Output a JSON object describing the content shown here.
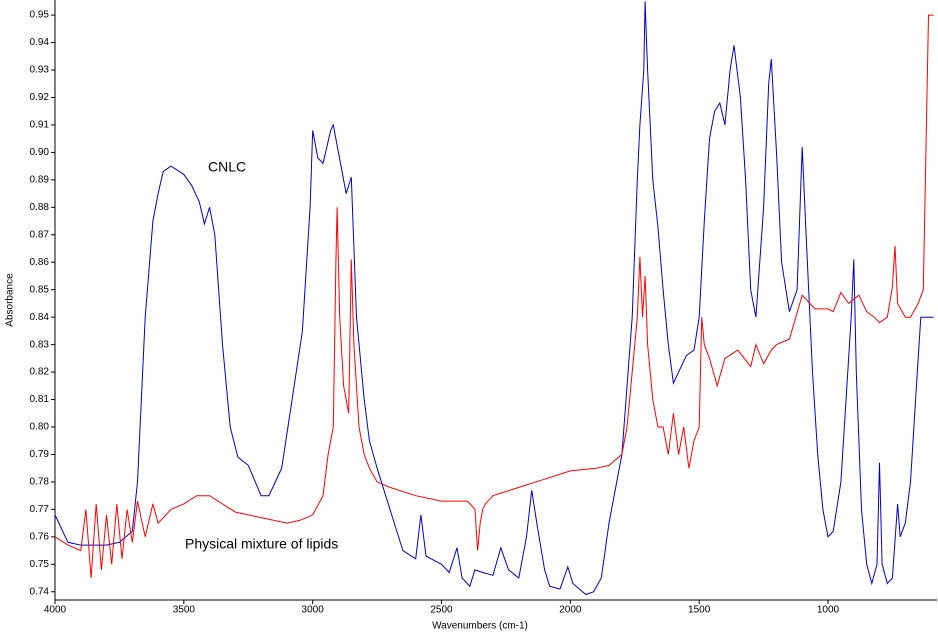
{
  "chart_data": {
    "type": "line",
    "xlabel": "Wavenumbers (cm-1)",
    "ylabel": "Absorbance",
    "xlim": [
      4000,
      577
    ],
    "ylim": [
      0.737,
      0.9555
    ],
    "xticks": [
      4000,
      3500,
      3000,
      2500,
      2000,
      1500,
      1000
    ],
    "yticks": [
      0.74,
      0.75,
      0.76,
      0.77,
      0.78,
      0.79,
      {
        "value": 0.8,
        "label": "0.80"
      },
      0.81,
      0.82,
      0.83,
      0.84,
      0.85,
      0.86,
      0.87,
      0.88,
      0.89,
      {
        "value": 0.9,
        "label": "0.90"
      },
      0.91,
      0.92,
      0.93,
      0.94,
      0.95
    ],
    "series": [
      {
        "name": "CNLC",
        "color": "#0000cc",
        "x": [
          4000,
          3950,
          3900,
          3800,
          3750,
          3700,
          3680,
          3650,
          3620,
          3600,
          3580,
          3550,
          3500,
          3470,
          3440,
          3420,
          3400,
          3380,
          3350,
          3320,
          3290,
          3250,
          3200,
          3170,
          3120,
          3080,
          3040,
          3010,
          3000,
          2980,
          2960,
          2930,
          2920,
          2900,
          2870,
          2850,
          2830,
          2800,
          2780,
          2750,
          2700,
          2650,
          2600,
          2580,
          2560,
          2500,
          2470,
          2440,
          2420,
          2390,
          2370,
          2340,
          2300,
          2270,
          2240,
          2200,
          2170,
          2150,
          2130,
          2100,
          2080,
          2040,
          2010,
          1990,
          1940,
          1910,
          1880,
          1850,
          1800,
          1760,
          1740,
          1730,
          1715,
          1710,
          1700,
          1680,
          1660,
          1640,
          1620,
          1600,
          1580,
          1550,
          1520,
          1500,
          1480,
          1460,
          1440,
          1420,
          1400,
          1380,
          1365,
          1340,
          1320,
          1300,
          1280,
          1250,
          1230,
          1220,
          1200,
          1180,
          1150,
          1120,
          1100,
          1085,
          1060,
          1040,
          1020,
          1000,
          980,
          950,
          910,
          900,
          890,
          870,
          850,
          830,
          810,
          800,
          790,
          770,
          750,
          730,
          720,
          700,
          680,
          660,
          640,
          590
        ],
        "values": [
          0.768,
          0.758,
          0.757,
          0.757,
          0.758,
          0.762,
          0.78,
          0.84,
          0.875,
          0.885,
          0.893,
          0.895,
          0.892,
          0.888,
          0.882,
          0.874,
          0.88,
          0.87,
          0.83,
          0.8,
          0.789,
          0.786,
          0.775,
          0.775,
          0.785,
          0.81,
          0.835,
          0.88,
          0.908,
          0.898,
          0.896,
          0.908,
          0.91,
          0.9,
          0.885,
          0.891,
          0.84,
          0.81,
          0.795,
          0.785,
          0.77,
          0.755,
          0.752,
          0.768,
          0.753,
          0.75,
          0.747,
          0.756,
          0.745,
          0.742,
          0.748,
          0.747,
          0.746,
          0.756,
          0.748,
          0.745,
          0.76,
          0.777,
          0.765,
          0.748,
          0.742,
          0.741,
          0.749,
          0.743,
          0.739,
          0.74,
          0.745,
          0.765,
          0.79,
          0.84,
          0.89,
          0.91,
          0.93,
          0.955,
          0.93,
          0.89,
          0.873,
          0.85,
          0.83,
          0.816,
          0.82,
          0.826,
          0.828,
          0.84,
          0.875,
          0.905,
          0.915,
          0.918,
          0.91,
          0.93,
          0.939,
          0.92,
          0.89,
          0.85,
          0.84,
          0.88,
          0.925,
          0.934,
          0.9,
          0.86,
          0.842,
          0.85,
          0.902,
          0.87,
          0.82,
          0.79,
          0.77,
          0.76,
          0.762,
          0.78,
          0.84,
          0.861,
          0.82,
          0.77,
          0.75,
          0.743,
          0.75,
          0.787,
          0.75,
          0.743,
          0.745,
          0.772,
          0.76,
          0.765,
          0.78,
          0.81,
          0.84,
          0.84
        ]
      },
      {
        "name": "Physical mixture of lipids",
        "color": "#ff0000",
        "x": [
          4000,
          3950,
          3900,
          3880,
          3860,
          3840,
          3820,
          3800,
          3780,
          3760,
          3740,
          3720,
          3700,
          3680,
          3650,
          3620,
          3600,
          3550,
          3500,
          3450,
          3400,
          3350,
          3300,
          3200,
          3100,
          3050,
          3000,
          2960,
          2940,
          2920,
          2910,
          2905,
          2895,
          2880,
          2860,
          2850,
          2840,
          2820,
          2800,
          2780,
          2750,
          2700,
          2600,
          2500,
          2400,
          2370,
          2360,
          2350,
          2340,
          2330,
          2300,
          2200,
          2100,
          2000,
          1900,
          1850,
          1800,
          1780,
          1760,
          1740,
          1730,
          1720,
          1710,
          1700,
          1680,
          1660,
          1640,
          1620,
          1600,
          1580,
          1560,
          1540,
          1520,
          1500,
          1490,
          1480,
          1460,
          1430,
          1400,
          1350,
          1300,
          1280,
          1250,
          1220,
          1200,
          1150,
          1100,
          1050,
          1000,
          980,
          950,
          920,
          880,
          850,
          820,
          800,
          770,
          750,
          740,
          730,
          700,
          680,
          650,
          630,
          620,
          610,
          590
        ],
        "values": [
          0.76,
          0.757,
          0.755,
          0.77,
          0.745,
          0.772,
          0.748,
          0.768,
          0.75,
          0.772,
          0.752,
          0.77,
          0.758,
          0.773,
          0.76,
          0.772,
          0.765,
          0.77,
          0.772,
          0.775,
          0.775,
          0.772,
          0.769,
          0.767,
          0.765,
          0.766,
          0.768,
          0.775,
          0.79,
          0.8,
          0.86,
          0.88,
          0.84,
          0.815,
          0.805,
          0.861,
          0.83,
          0.8,
          0.79,
          0.785,
          0.78,
          0.778,
          0.775,
          0.773,
          0.773,
          0.77,
          0.755,
          0.765,
          0.77,
          0.772,
          0.775,
          0.778,
          0.781,
          0.784,
          0.785,
          0.786,
          0.79,
          0.8,
          0.82,
          0.84,
          0.862,
          0.84,
          0.855,
          0.83,
          0.81,
          0.8,
          0.8,
          0.79,
          0.805,
          0.79,
          0.8,
          0.785,
          0.795,
          0.8,
          0.84,
          0.83,
          0.825,
          0.815,
          0.825,
          0.828,
          0.822,
          0.83,
          0.823,
          0.828,
          0.83,
          0.832,
          0.848,
          0.843,
          0.843,
          0.842,
          0.849,
          0.845,
          0.848,
          0.842,
          0.84,
          0.838,
          0.84,
          0.851,
          0.866,
          0.845,
          0.84,
          0.84,
          0.845,
          0.85,
          0.9,
          0.95,
          0.95
        ]
      }
    ]
  }
}
